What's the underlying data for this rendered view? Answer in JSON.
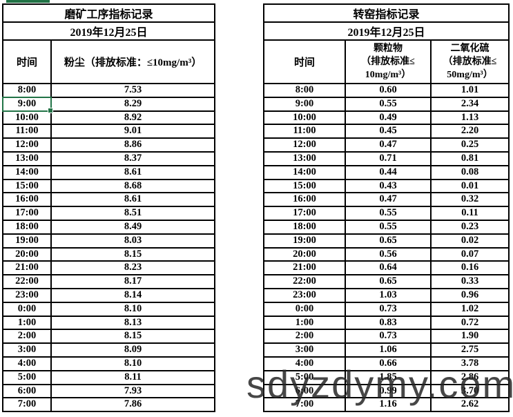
{
  "left_table": {
    "title": "磨矿工序指标记录",
    "date": "2019年12月25日",
    "columns": {
      "time_label": "时间",
      "dust_label": "粉尘（排放标准：≤10mg/m³）"
    },
    "rows": [
      {
        "time": "8:00",
        "dust": "7.53"
      },
      {
        "time": "9:00",
        "dust": "8.29"
      },
      {
        "time": "10:00",
        "dust": "8.92"
      },
      {
        "time": "11:00",
        "dust": "9.01"
      },
      {
        "time": "12:00",
        "dust": "8.86"
      },
      {
        "time": "13:00",
        "dust": "8.37"
      },
      {
        "time": "14:00",
        "dust": "8.61"
      },
      {
        "time": "15:00",
        "dust": "8.68"
      },
      {
        "time": "16:00",
        "dust": "8.61"
      },
      {
        "time": "17:00",
        "dust": "8.51"
      },
      {
        "time": "18:00",
        "dust": "8.49"
      },
      {
        "time": "19:00",
        "dust": "8.03"
      },
      {
        "time": "20:00",
        "dust": "8.15"
      },
      {
        "time": "21:00",
        "dust": "8.23"
      },
      {
        "time": "22:00",
        "dust": "8.17"
      },
      {
        "time": "23:00",
        "dust": "8.14"
      },
      {
        "time": "0:00",
        "dust": "8.10"
      },
      {
        "time": "1:00",
        "dust": "8.13"
      },
      {
        "time": "2:00",
        "dust": "8.15"
      },
      {
        "time": "3:00",
        "dust": "8.09"
      },
      {
        "time": "4:00",
        "dust": "8.10"
      },
      {
        "time": "5:00",
        "dust": "8.11"
      },
      {
        "time": "6:00",
        "dust": "7.93"
      },
      {
        "time": "7:00",
        "dust": "7.86"
      }
    ]
  },
  "right_table": {
    "title": "转窑指标记录",
    "date": "2019年12月25日",
    "columns": {
      "time_label": "时间",
      "pm": {
        "lines": [
          "颗粒物",
          "（排放标准≤",
          "10mg/m³）"
        ]
      },
      "so2": {
        "lines": [
          "二氧化硫",
          "（排放标准≤",
          "50mg/m³）"
        ]
      }
    },
    "rows": [
      {
        "time": "8:00",
        "pm": "0.60",
        "so2": "1.01"
      },
      {
        "time": "9:00",
        "pm": "0.55",
        "so2": "2.34"
      },
      {
        "time": "10:00",
        "pm": "0.49",
        "so2": "1.13"
      },
      {
        "time": "11:00",
        "pm": "0.45",
        "so2": "2.20"
      },
      {
        "time": "12:00",
        "pm": "0.47",
        "so2": "0.25"
      },
      {
        "time": "13:00",
        "pm": "0.71",
        "so2": "0.81"
      },
      {
        "time": "14:00",
        "pm": "0.44",
        "so2": "0.08"
      },
      {
        "time": "15:00",
        "pm": "0.43",
        "so2": "0.01"
      },
      {
        "time": "16:00",
        "pm": "0.47",
        "so2": "0.32"
      },
      {
        "time": "17:00",
        "pm": "0.55",
        "so2": "0.11"
      },
      {
        "time": "18:00",
        "pm": "0.55",
        "so2": "0.23"
      },
      {
        "time": "19:00",
        "pm": "0.65",
        "so2": "0.02"
      },
      {
        "time": "20:00",
        "pm": "0.56",
        "so2": "0.07"
      },
      {
        "time": "21:00",
        "pm": "0.64",
        "so2": "0.16"
      },
      {
        "time": "22:00",
        "pm": "0.65",
        "so2": "0.33"
      },
      {
        "time": "23:00",
        "pm": "1.03",
        "so2": "0.96"
      },
      {
        "time": "0:00",
        "pm": "0.73",
        "so2": "1.02"
      },
      {
        "time": "1:00",
        "pm": "0.83",
        "so2": "0.72"
      },
      {
        "time": "2:00",
        "pm": "0.73",
        "so2": "1.90"
      },
      {
        "time": "3:00",
        "pm": "1.06",
        "so2": "2.75"
      },
      {
        "time": "4:00",
        "pm": "0.66",
        "so2": "3.78"
      },
      {
        "time": "5:00",
        "pm": "1.85",
        "so2": "2.86"
      },
      {
        "time": "6:00",
        "pm": "0.99",
        "so2": "3.70"
      },
      {
        "time": "7:00",
        "pm": "1.16",
        "so2": "2.62"
      }
    ]
  },
  "selection": {
    "selected_cell_value": "9:00"
  },
  "watermark": {
    "text": "sdyzdymy.com"
  },
  "colors": {
    "selection_green": "#217346",
    "grid_line": "#000000",
    "watermark_gray": "rgba(38,38,38,0.85)"
  }
}
